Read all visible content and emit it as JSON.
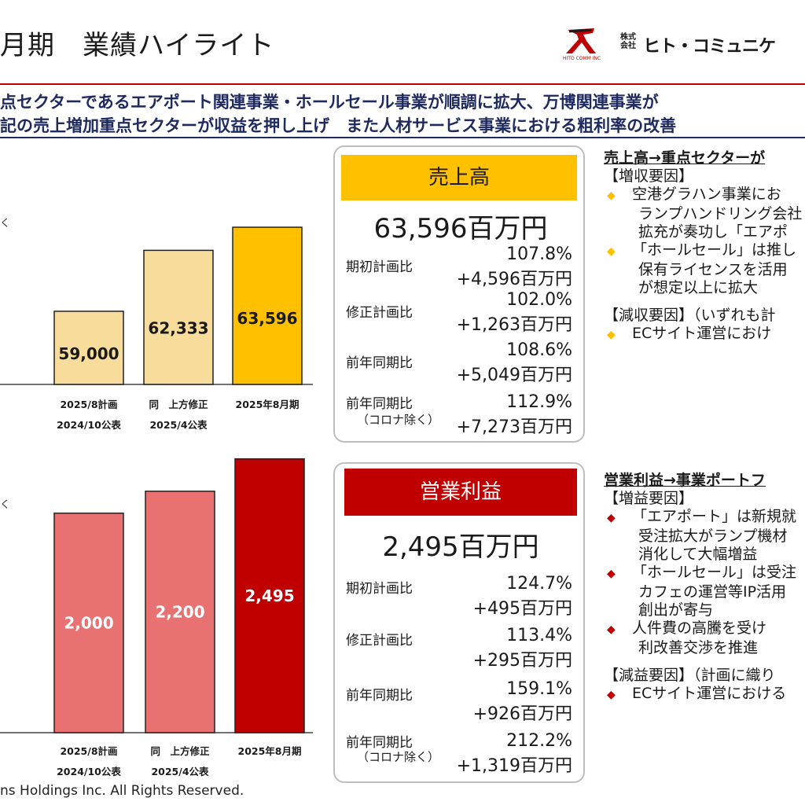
{
  "header": {
    "title": "月期　業績ハイライト",
    "company_prefix": "株式会社",
    "company_name": "ヒト・コミュニケ",
    "logo_caption": "HITO COMM INC"
  },
  "summary": {
    "line1": "点セクターであるエアポート関連事業・ホールセール事業が順調に拡大、万博関連事業が",
    "line2": "記の売上増加重点セクターが収益を押し上げ　また人材サービス事業における粗利率の改善"
  },
  "chart_data": [
    {
      "type": "bar",
      "name_note": "く",
      "categories": [
        "2025/8計画\n2024/10公表",
        "同　上方修正\n2025/4公表",
        "2025年8月期"
      ],
      "values": [
        59000,
        62333,
        63596
      ],
      "value_labels": [
        "59,000",
        "62,333",
        "63,596"
      ],
      "colors": [
        "#f7dc9b",
        "#f7dc9b",
        "#ffc000"
      ],
      "ylim": [
        55000,
        64500
      ],
      "title": "",
      "xlabel": "",
      "ylabel": ""
    },
    {
      "type": "bar",
      "name_note": "く",
      "categories": [
        "2025/8計画\n2024/10公表",
        "同　上方修正\n2025/4公表",
        "2025年8月期"
      ],
      "values": [
        2000,
        2200,
        2495
      ],
      "value_labels": [
        "2,000",
        "2,200",
        "2,495"
      ],
      "colors": [
        "#e87272",
        "#e87272",
        "#c00000"
      ],
      "ylim": [
        0,
        2500
      ],
      "title": "",
      "xlabel": "",
      "ylabel": ""
    }
  ],
  "sales_box": {
    "header": "売上高",
    "total": "63,596百万円",
    "rows": [
      {
        "label": "期初計画比",
        "sub": "",
        "pct": "107.8%",
        "amt": "+4,596百万円"
      },
      {
        "label": "修正計画比",
        "sub": "",
        "pct": "102.0%",
        "amt": "+1,263百万円"
      },
      {
        "label": "前年同期比",
        "sub": "",
        "pct": "108.6%",
        "amt": "+5,049百万円"
      },
      {
        "label": "前年同期比",
        "sub": "（コロナ除く）",
        "pct": "112.9%",
        "amt": "+7,273百万円"
      }
    ]
  },
  "profit_box": {
    "header": "営業利益",
    "total": "2,495百万円",
    "rows": [
      {
        "label": "期初計画比",
        "sub": "",
        "pct": "124.7%",
        "amt": "+495百万円"
      },
      {
        "label": "修正計画比",
        "sub": "",
        "pct": "113.4%",
        "amt": "+295百万円"
      },
      {
        "label": "前年同期比",
        "sub": "",
        "pct": "159.1%",
        "amt": "+926百万円"
      },
      {
        "label": "前年同期比",
        "sub": "（コロナ除く）",
        "pct": "212.2%",
        "amt": "+1,319百万円"
      }
    ]
  },
  "side_sales": {
    "title": "売上高→重点セクターが",
    "lines": [
      {
        "type": "plain",
        "text": "【増収要因】"
      },
      {
        "type": "bullet",
        "text": "空港グラハン事業にお"
      },
      {
        "type": "cont",
        "text": "ランプハンドリング会社"
      },
      {
        "type": "cont",
        "text": "拡充が奏功し「エアポ"
      },
      {
        "type": "bullet",
        "text": "「ホールセール」は推し"
      },
      {
        "type": "cont",
        "text": "保有ライセンスを活用"
      },
      {
        "type": "cont",
        "text": "が想定以上に拡大"
      },
      {
        "type": "gap",
        "text": ""
      },
      {
        "type": "plain",
        "text": "【減収要因】（いずれも計"
      },
      {
        "type": "bullet",
        "text": "ECサイト運営におけ"
      }
    ]
  },
  "side_profit": {
    "title": "営業利益→事業ポートフ",
    "lines": [
      {
        "type": "plain",
        "text": "【増益要因】"
      },
      {
        "type": "bullet",
        "text": "「エアポート」は新規就"
      },
      {
        "type": "cont",
        "text": "受注拡大がランプ機材"
      },
      {
        "type": "cont",
        "text": "消化して大幅増益"
      },
      {
        "type": "bullet",
        "text": "「ホールセール」は受注"
      },
      {
        "type": "cont",
        "text": "カフェの運営等IP活用"
      },
      {
        "type": "cont",
        "text": "創出が寄与"
      },
      {
        "type": "bullet",
        "text": "人件費の高騰を受け"
      },
      {
        "type": "cont",
        "text": "利改善交渉を推進"
      },
      {
        "type": "gap",
        "text": ""
      },
      {
        "type": "plain",
        "text": "【減益要因】（計画に織り"
      },
      {
        "type": "bullet",
        "text": "ECサイト運営における"
      }
    ]
  },
  "footer": {
    "copyright": "ns Holdings Inc. All Rights Reserved."
  }
}
